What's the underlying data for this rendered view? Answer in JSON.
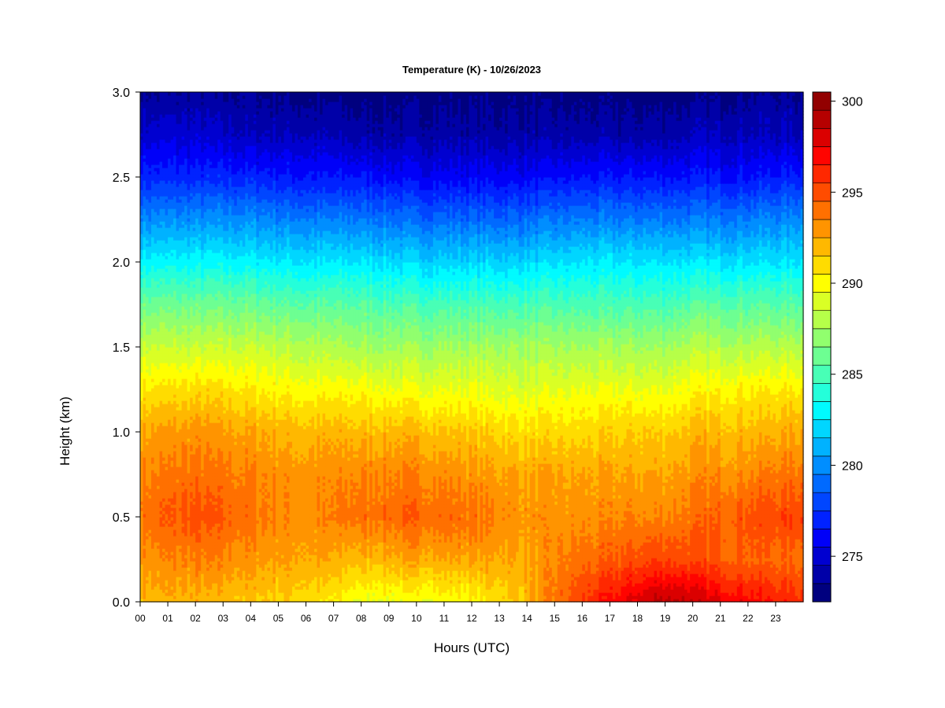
{
  "chart_data": {
    "type": "heatmap",
    "title": "Temperature (K) - 10/26/2023",
    "xlabel": "Hours (UTC)",
    "ylabel": "Height (km)",
    "x_ticks": [
      "00",
      "01",
      "02",
      "03",
      "04",
      "05",
      "06",
      "07",
      "08",
      "09",
      "10",
      "11",
      "12",
      "13",
      "14",
      "15",
      "16",
      "17",
      "18",
      "19",
      "20",
      "21",
      "22",
      "23"
    ],
    "y_ticks": [
      "0.0",
      "0.5",
      "1.0",
      "1.5",
      "2.0",
      "2.5",
      "3.0"
    ],
    "xlim": [
      0,
      24
    ],
    "ylim": [
      0,
      3
    ],
    "colorbar": {
      "min": 273,
      "max": 301,
      "step": 1,
      "tick_values": [
        275,
        280,
        285,
        290,
        295,
        300
      ],
      "tick_labels": [
        "275",
        "280",
        "285",
        "290",
        "295",
        "300"
      ],
      "colors": [
        "#00007f",
        "#0000a8",
        "#0000d0",
        "#0000f8",
        "#0022ff",
        "#0046ff",
        "#006aff",
        "#008eff",
        "#00b2ff",
        "#00d6ff",
        "#00fbff",
        "#24ffda",
        "#48ffb6",
        "#6dff92",
        "#91ff6e",
        "#b6ff49",
        "#daff25",
        "#ffff00",
        "#ffdc00",
        "#ffb800",
        "#ff9400",
        "#ff7000",
        "#ff4c00",
        "#ff2800",
        "#ff0400",
        "#db0000",
        "#b60000",
        "#920000"
      ]
    },
    "profile_km": [
      0.0,
      0.25,
      0.5,
      0.75,
      1.0,
      1.25,
      1.5,
      1.75,
      2.0,
      2.25,
      2.5,
      2.75,
      3.0
    ],
    "profile_hours": [
      0,
      2,
      4,
      6,
      8,
      10,
      12,
      14,
      16,
      18,
      19,
      20,
      22,
      24
    ],
    "temperature_grid_K": [
      [
        292.5,
        292.5,
        292.0,
        291.5,
        290.0,
        290.0,
        290.5,
        292.5,
        296.0,
        298.5,
        299.5,
        299.0,
        297.5,
        296.5
      ],
      [
        293.5,
        294.0,
        293.5,
        293.0,
        292.5,
        293.0,
        293.0,
        293.0,
        294.5,
        295.5,
        296.0,
        295.5,
        295.0,
        294.5
      ],
      [
        294.5,
        295.5,
        294.5,
        293.5,
        294.5,
        295.0,
        294.5,
        293.5,
        293.5,
        294.0,
        294.0,
        294.5,
        295.5,
        296.0
      ],
      [
        294.0,
        294.5,
        294.0,
        293.5,
        294.0,
        294.0,
        293.5,
        293.0,
        293.0,
        293.0,
        293.0,
        293.5,
        294.0,
        294.5
      ],
      [
        293.0,
        293.5,
        293.0,
        292.5,
        292.5,
        292.5,
        292.0,
        291.5,
        291.5,
        292.0,
        292.0,
        292.5,
        292.5,
        293.0
      ],
      [
        291.0,
        291.5,
        291.0,
        290.5,
        290.5,
        290.0,
        290.0,
        289.5,
        290.0,
        290.0,
        290.0,
        290.5,
        291.0,
        291.0
      ],
      [
        289.0,
        289.0,
        289.0,
        288.5,
        288.0,
        288.0,
        288.0,
        288.0,
        288.0,
        288.0,
        288.0,
        288.5,
        288.5,
        288.5
      ],
      [
        286.5,
        286.5,
        286.5,
        286.0,
        286.0,
        285.5,
        285.5,
        285.5,
        285.5,
        285.5,
        285.5,
        286.0,
        286.0,
        286.0
      ],
      [
        283.5,
        283.5,
        283.5,
        283.0,
        283.0,
        282.5,
        282.5,
        282.5,
        283.0,
        283.0,
        283.0,
        283.0,
        283.0,
        283.0
      ],
      [
        280.5,
        280.5,
        280.5,
        280.0,
        280.0,
        279.5,
        279.5,
        279.5,
        280.0,
        280.0,
        280.0,
        280.0,
        280.0,
        280.5
      ],
      [
        277.5,
        277.5,
        277.5,
        277.0,
        277.0,
        276.5,
        276.5,
        276.5,
        277.0,
        277.0,
        277.0,
        277.0,
        277.0,
        277.5
      ],
      [
        275.5,
        275.5,
        275.0,
        275.0,
        274.5,
        274.5,
        274.5,
        274.5,
        274.5,
        274.5,
        274.5,
        275.0,
        275.0,
        275.0
      ],
      [
        274.0,
        274.0,
        274.0,
        273.5,
        273.5,
        273.5,
        273.5,
        273.5,
        273.5,
        273.5,
        273.5,
        273.5,
        274.0,
        274.0
      ]
    ]
  }
}
